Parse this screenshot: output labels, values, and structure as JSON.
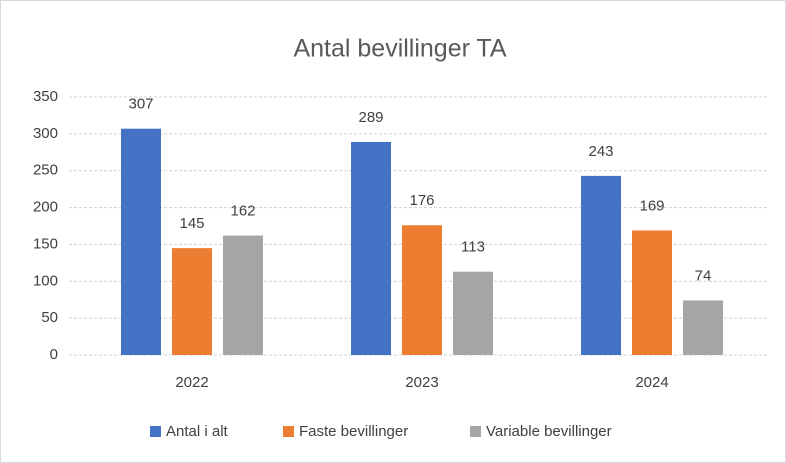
{
  "chart_data": {
    "type": "bar",
    "title": "Antal bevillinger TA",
    "categories": [
      "2022",
      "2023",
      "2024"
    ],
    "series": [
      {
        "name": "Antal i alt",
        "color": "#4472c4",
        "values": [
          307,
          289,
          243
        ]
      },
      {
        "name": "Faste bevillinger",
        "color": "#ed7d31",
        "values": [
          145,
          176,
          169
        ]
      },
      {
        "name": "Variable bevillinger",
        "color": "#a5a5a5",
        "values": [
          162,
          113,
          74
        ]
      }
    ],
    "ylim": [
      0,
      350
    ],
    "yticks": [
      0,
      50,
      100,
      150,
      200,
      250,
      300,
      350
    ],
    "grid": true,
    "legend": "bottom"
  }
}
